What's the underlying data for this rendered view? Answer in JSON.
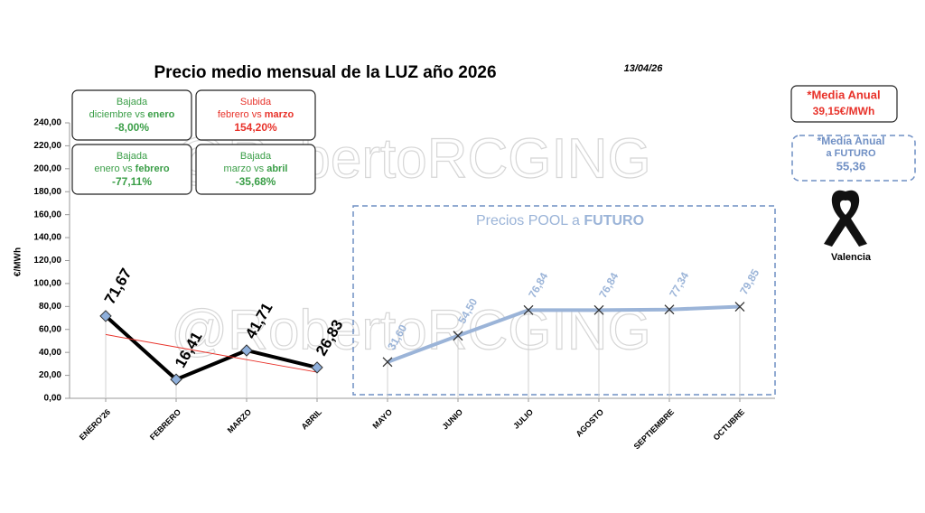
{
  "chart_data": {
    "type": "line",
    "title": "Precio medio mensual de la LUZ año 2026",
    "date": "13/04/26",
    "y_label": "€/MWh",
    "watermark": "@RobertoRCGING",
    "categories": [
      "ENERO'26",
      "FEBRERO",
      "MARZO",
      "ABRIL",
      "MAYO",
      "JUNIO",
      "JULIO",
      "AGOSTO",
      "SEPTIEMBRE",
      "OCTUBRE"
    ],
    "series": [
      {
        "color": "#000000",
        "marker": "diamond",
        "marker_color": "#8fb0dc",
        "values": [
          71.67,
          16.41,
          41.71,
          26.83,
          null,
          null,
          null,
          null,
          null,
          null
        ],
        "value_labels": [
          "71,67",
          "16,41",
          "41,71",
          "26,83",
          null,
          null,
          null,
          null,
          null,
          null
        ]
      },
      {
        "color": "#9bb4d8",
        "marker": "x",
        "marker_color": "#333333",
        "values": [
          null,
          null,
          null,
          null,
          31.6,
          54.5,
          76.84,
          76.84,
          77.34,
          79.85
        ],
        "value_labels": [
          null,
          null,
          null,
          null,
          "31,60",
          "54,50",
          "76,84",
          "76,84",
          "77,34",
          "79,85"
        ]
      },
      {
        "color": "#e8322a",
        "marker": "none",
        "values": [
          55.54,
          44.62,
          33.69,
          22.77,
          null,
          null,
          null,
          null,
          null,
          null
        ]
      }
    ],
    "ylim": [
      0,
      240
    ],
    "yticks": [
      {
        "value": 0,
        "label": "0,00"
      },
      {
        "value": 20,
        "label": "20,00"
      },
      {
        "value": 40,
        "label": "40,00"
      },
      {
        "value": 60,
        "label": "60,00"
      },
      {
        "value": 80,
        "label": "80,00"
      },
      {
        "value": 100,
        "label": "100,00"
      },
      {
        "value": 120,
        "label": "120,00"
      },
      {
        "value": 140,
        "label": "140,00"
      },
      {
        "value": 160,
        "label": "160,00"
      },
      {
        "value": 180,
        "label": "180,00"
      },
      {
        "value": 200,
        "label": "200,00"
      },
      {
        "value": 220,
        "label": "220,00"
      },
      {
        "value": 240,
        "label": "240,00"
      }
    ],
    "annotations": [
      {
        "heading": "Bajada",
        "text": "diciembre vs ",
        "emphasis": "enero",
        "value": "-8,00%",
        "color": "#3a9e47"
      },
      {
        "heading": "Subida",
        "text": "febrero vs ",
        "emphasis": "marzo",
        "value": "154,20%",
        "color": "#e8322a"
      },
      {
        "heading": "Bajada",
        "text": "enero vs ",
        "emphasis": "febrero",
        "value": "-77,11%",
        "color": "#3a9e47"
      },
      {
        "heading": "Bajada",
        "text": "marzo vs ",
        "emphasis": "abril",
        "value": "-35,68%",
        "color": "#3a9e47"
      }
    ],
    "future_box": {
      "text": "Precios POOL a ",
      "emphasis": "FUTURO"
    },
    "annual_average": {
      "label": "*Media Anual",
      "value": "39,15€/MWh"
    },
    "future_average": {
      "label": "*Media Anual",
      "sublabel": "a FUTURO",
      "value": "55,36"
    },
    "location": "Valencia"
  }
}
